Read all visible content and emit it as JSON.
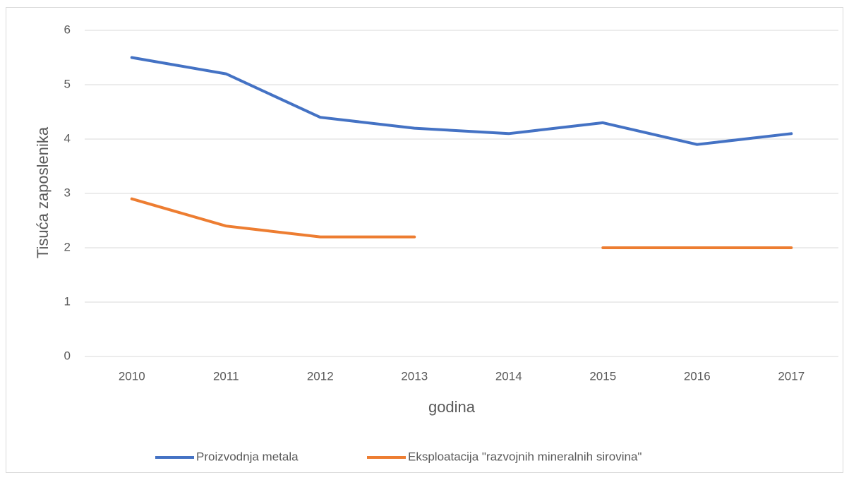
{
  "chart_data": {
    "type": "line",
    "x_label": "godina",
    "y_label": "Tisuća zaposlenika",
    "categories": [
      "2010",
      "2011",
      "2012",
      "2013",
      "2014",
      "2015",
      "2016",
      "2017"
    ],
    "series": [
      {
        "name": "Proizvodnja metala",
        "color": "#4472c4",
        "values": [
          5.5,
          5.2,
          4.4,
          4.2,
          4.1,
          4.3,
          3.9,
          4.1
        ]
      },
      {
        "name": "Eksploatacija \"razvojnih mineralnih sirovina\"",
        "color": "#ed7d31",
        "values": [
          2.9,
          2.4,
          2.2,
          2.2,
          null,
          2.0,
          2.0,
          2.0
        ]
      }
    ],
    "ylim": [
      0,
      6
    ],
    "yticks": [
      0,
      1,
      2,
      3,
      4,
      5,
      6
    ],
    "grid": true,
    "legend": "bottom"
  }
}
